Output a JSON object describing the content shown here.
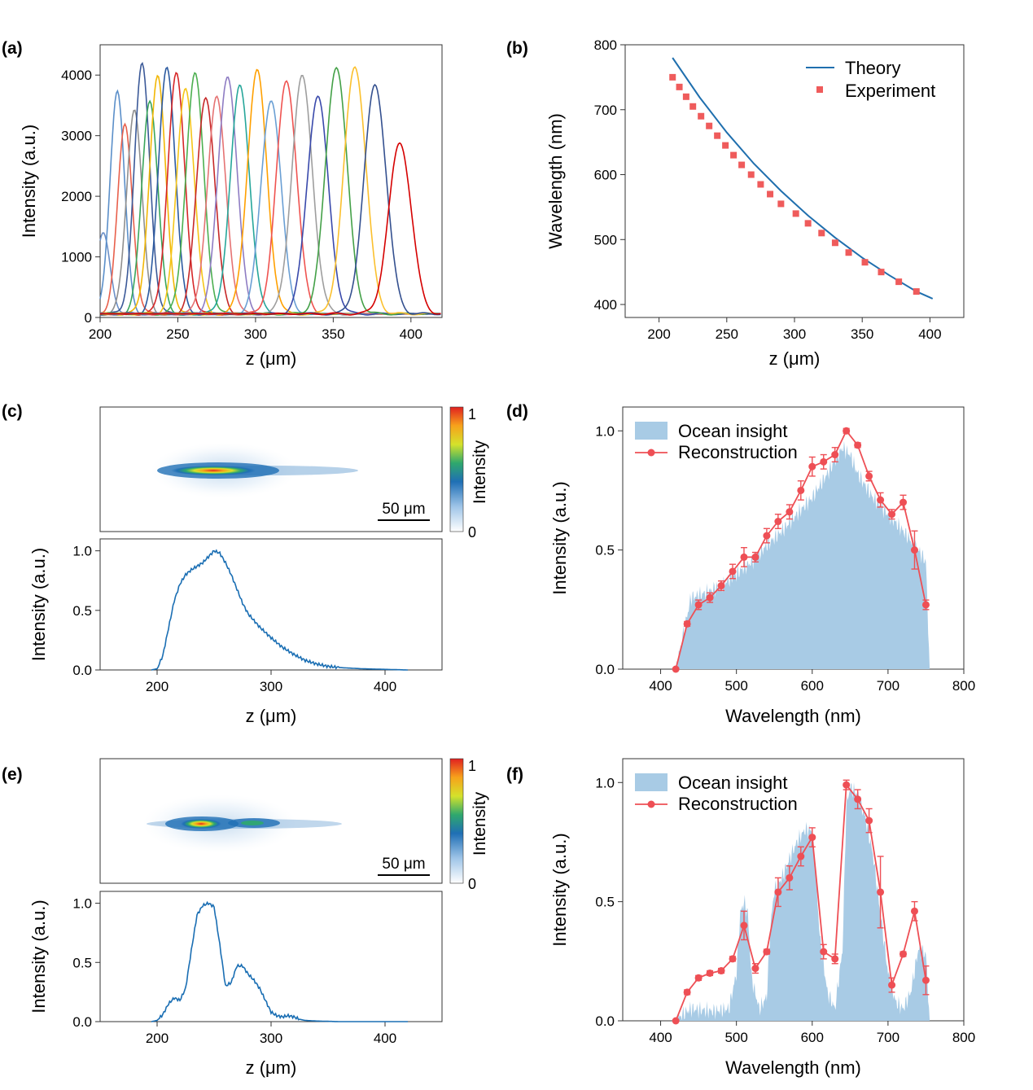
{
  "panels": {
    "a": {
      "label": "(a)"
    },
    "b": {
      "label": "(b)"
    },
    "c": {
      "label": "(c)"
    },
    "d": {
      "label": "(d)"
    },
    "e": {
      "label": "(e)"
    },
    "f": {
      "label": "(f)"
    }
  },
  "colorbar": {
    "label": "Intensity",
    "max": "1",
    "min": "0"
  },
  "scalebar": {
    "text": "50 μm"
  },
  "colors": {
    "theory": "#1f6fae",
    "experiment": "#ef5b5b",
    "ocean": "#a8cbe5",
    "reconstruction": "#ee4f55",
    "profile": "#1a6eb3"
  },
  "chart_data": [
    {
      "id": "a",
      "type": "line",
      "xlabel": "z (μm)",
      "ylabel": "Intensity (a.u.)",
      "xlim": [
        200,
        420
      ],
      "ylim": [
        0,
        4500
      ],
      "xticks": [
        200,
        250,
        300,
        350,
        400
      ],
      "yticks": [
        0,
        1000,
        2000,
        3000,
        4000
      ],
      "series": [
        {
          "peak_z": 202,
          "peak": 1300,
          "color": "#6b8fc7"
        },
        {
          "peak_z": 211,
          "peak": 3700,
          "color": "#5b8fc9"
        },
        {
          "peak_z": 216,
          "peak": 3100,
          "color": "#e8604c"
        },
        {
          "peak_z": 222,
          "peak": 3400,
          "color": "#8f8f8f"
        },
        {
          "peak_z": 227,
          "peak": 4100,
          "color": "#3b5998"
        },
        {
          "peak_z": 232,
          "peak": 3550,
          "color": "#3aa65c"
        },
        {
          "peak_z": 237,
          "peak": 3900,
          "color": "#f2b705"
        },
        {
          "peak_z": 243,
          "peak": 4100,
          "color": "#2c5aa0"
        },
        {
          "peak_z": 249,
          "peak": 3950,
          "color": "#d62728"
        },
        {
          "peak_z": 255,
          "peak": 3750,
          "color": "#f5c518"
        },
        {
          "peak_z": 261,
          "peak": 3950,
          "color": "#4caf50"
        },
        {
          "peak_z": 268,
          "peak": 3600,
          "color": "#c62828"
        },
        {
          "peak_z": 275,
          "peak": 3550,
          "color": "#e57373"
        },
        {
          "peak_z": 282,
          "peak": 3950,
          "color": "#8e7cc3"
        },
        {
          "peak_z": 290,
          "peak": 3750,
          "color": "#26a69a"
        },
        {
          "peak_z": 301,
          "peak": 4000,
          "color": "#ffa000"
        },
        {
          "peak_z": 310,
          "peak": 3550,
          "color": "#6a9fd4"
        },
        {
          "peak_z": 320,
          "peak": 3850,
          "color": "#ef5350"
        },
        {
          "peak_z": 330,
          "peak": 3900,
          "color": "#9e9e9e"
        },
        {
          "peak_z": 340,
          "peak": 3600,
          "color": "#3949ab"
        },
        {
          "peak_z": 352,
          "peak": 4100,
          "color": "#43a047"
        },
        {
          "peak_z": 364,
          "peak": 4100,
          "color": "#fbc02d"
        },
        {
          "peak_z": 377,
          "peak": 3780,
          "color": "#34508f"
        },
        {
          "peak_z": 393,
          "peak": 2830,
          "color": "#d50000"
        }
      ]
    },
    {
      "id": "b",
      "type": "scatter",
      "xlabel": "z (μm)",
      "ylabel": "Wavelength (nm)",
      "xlim": [
        175,
        425
      ],
      "ylim": [
        380,
        800
      ],
      "xticks": [
        200,
        250,
        300,
        350,
        400
      ],
      "yticks": [
        400,
        500,
        600,
        700,
        800
      ],
      "legend_position": "top-right",
      "series": [
        {
          "name": "Theory",
          "kind": "line",
          "x": [
            210,
            230,
            250,
            270,
            290,
            310,
            330,
            350,
            370,
            390,
            402
          ],
          "y": [
            780,
            719,
            665,
            617,
            575,
            537,
            503,
            472,
            445,
            420,
            409
          ]
        },
        {
          "name": "Experiment",
          "kind": "marker",
          "x": [
            210,
            215,
            220,
            225,
            231,
            237,
            243,
            249,
            255,
            261,
            268,
            275,
            282,
            290,
            301,
            310,
            320,
            330,
            340,
            352,
            364,
            377,
            390
          ],
          "y": [
            750,
            735,
            720,
            705,
            690,
            675,
            660,
            645,
            630,
            615,
            600,
            585,
            570,
            555,
            540,
            525,
            510,
            495,
            480,
            465,
            450,
            435,
            420
          ]
        }
      ]
    },
    {
      "id": "c",
      "type": "line",
      "xlabel": "z (μm)",
      "ylabel": "Intensity (a.u.)",
      "xlim": [
        150,
        450
      ],
      "ylim": [
        0,
        1.1
      ],
      "xticks": [
        200,
        300,
        400
      ],
      "yticks": [
        "0.0",
        "0.5",
        "1.0"
      ],
      "x": [
        195,
        200,
        205,
        210,
        215,
        220,
        225,
        230,
        235,
        240,
        245,
        250,
        255,
        260,
        265,
        270,
        275,
        280,
        290,
        300,
        310,
        320,
        330,
        340,
        350,
        360,
        380,
        400,
        420
      ],
      "y": [
        0,
        0.01,
        0.12,
        0.35,
        0.58,
        0.72,
        0.8,
        0.84,
        0.87,
        0.9,
        0.95,
        1.0,
        0.98,
        0.9,
        0.8,
        0.68,
        0.56,
        0.47,
        0.36,
        0.27,
        0.19,
        0.13,
        0.08,
        0.05,
        0.03,
        0.02,
        0.01,
        0.005,
        0
      ]
    },
    {
      "id": "d",
      "type": "area",
      "xlabel": "Wavelength (nm)",
      "ylabel": "Intensity (a.u.)",
      "xlim": [
        350,
        800
      ],
      "ylim": [
        0,
        1.1
      ],
      "xticks": [
        400,
        500,
        600,
        700,
        800
      ],
      "yticks": [
        "0.0",
        "0.5",
        "1.0"
      ],
      "legend_position": "top-left",
      "series": [
        {
          "name": "Ocean insight",
          "kind": "area",
          "x": [
            350,
            420,
            430,
            440,
            460,
            480,
            500,
            520,
            540,
            560,
            580,
            600,
            620,
            640,
            650,
            660,
            680,
            700,
            720,
            740,
            750,
            755,
            800
          ],
          "y": [
            0,
            0,
            0.15,
            0.3,
            0.32,
            0.35,
            0.4,
            0.45,
            0.52,
            0.58,
            0.65,
            0.72,
            0.82,
            0.93,
            0.9,
            0.82,
            0.72,
            0.65,
            0.58,
            0.5,
            0.45,
            0,
            0
          ]
        },
        {
          "name": "Reconstruction",
          "kind": "line-marker",
          "x": [
            420,
            435,
            450,
            465,
            480,
            495,
            510,
            525,
            540,
            555,
            570,
            585,
            600,
            615,
            630,
            645,
            660,
            675,
            690,
            705,
            720,
            735,
            750
          ],
          "y": [
            0.0,
            0.19,
            0.27,
            0.3,
            0.35,
            0.41,
            0.47,
            0.47,
            0.56,
            0.62,
            0.66,
            0.75,
            0.85,
            0.87,
            0.9,
            1.0,
            0.94,
            0.81,
            0.71,
            0.65,
            0.7,
            0.5,
            0.27
          ],
          "err": [
            0,
            0.01,
            0.02,
            0.02,
            0.02,
            0.03,
            0.04,
            0.02,
            0.03,
            0.03,
            0.03,
            0.04,
            0.04,
            0.03,
            0.03,
            0.01,
            0.01,
            0.02,
            0.03,
            0.02,
            0.03,
            0.08,
            0.02
          ]
        }
      ]
    },
    {
      "id": "e",
      "type": "line",
      "xlabel": "z (μm)",
      "ylabel": "Intensity (a.u.)",
      "xlim": [
        150,
        450
      ],
      "ylim": [
        0,
        1.1
      ],
      "xticks": [
        200,
        300,
        400
      ],
      "yticks": [
        "0.0",
        "0.5",
        "1.0"
      ],
      "x": [
        195,
        200,
        205,
        210,
        215,
        220,
        225,
        230,
        235,
        240,
        245,
        250,
        255,
        260,
        265,
        270,
        275,
        280,
        285,
        290,
        295,
        300,
        305,
        310,
        315,
        320,
        325,
        330,
        340,
        360,
        380,
        400,
        420
      ],
      "y": [
        0,
        0.01,
        0.06,
        0.15,
        0.2,
        0.18,
        0.28,
        0.6,
        0.9,
        0.98,
        1.0,
        0.97,
        0.65,
        0.3,
        0.33,
        0.47,
        0.47,
        0.4,
        0.35,
        0.28,
        0.18,
        0.08,
        0.05,
        0.04,
        0.05,
        0.04,
        0.02,
        0.01,
        0.005,
        0,
        0,
        0,
        0
      ]
    },
    {
      "id": "f",
      "type": "area",
      "xlabel": "Wavelength (nm)",
      "ylabel": "Intensity (a.u.)",
      "xlim": [
        350,
        800
      ],
      "ylim": [
        0,
        1.1
      ],
      "xticks": [
        400,
        500,
        600,
        700,
        800
      ],
      "yticks": [
        "0.0",
        "0.5",
        "1.0"
      ],
      "legend_position": "top-left",
      "series": [
        {
          "name": "Ocean insight",
          "kind": "area",
          "x": [
            350,
            420,
            430,
            440,
            470,
            490,
            500,
            505,
            510,
            515,
            520,
            530,
            540,
            545,
            550,
            560,
            570,
            580,
            590,
            600,
            605,
            610,
            620,
            630,
            640,
            645,
            650,
            660,
            670,
            680,
            690,
            700,
            710,
            720,
            730,
            740,
            750,
            755,
            800
          ],
          "y": [
            0,
            0,
            0.03,
            0.05,
            0.04,
            0.05,
            0.2,
            0.45,
            0.5,
            0.45,
            0.18,
            0.05,
            0.1,
            0.4,
            0.55,
            0.6,
            0.68,
            0.75,
            0.8,
            0.8,
            0.6,
            0.35,
            0.12,
            0.05,
            0.3,
            0.9,
            0.98,
            0.95,
            0.85,
            0.7,
            0.45,
            0.2,
            0.08,
            0.05,
            0.12,
            0.3,
            0.28,
            0,
            0
          ]
        },
        {
          "name": "Reconstruction",
          "kind": "line-marker",
          "x": [
            420,
            435,
            450,
            465,
            480,
            495,
            510,
            525,
            540,
            555,
            570,
            585,
            600,
            615,
            630,
            645,
            660,
            675,
            690,
            705,
            720,
            735,
            750
          ],
          "y": [
            0.0,
            0.12,
            0.18,
            0.2,
            0.21,
            0.26,
            0.4,
            0.22,
            0.29,
            0.54,
            0.6,
            0.69,
            0.77,
            0.29,
            0.26,
            0.99,
            0.93,
            0.84,
            0.54,
            0.15,
            0.28,
            0.46,
            0.17
          ],
          "err": [
            0,
            0.01,
            0.01,
            0.01,
            0.01,
            0.01,
            0.06,
            0.02,
            0.01,
            0.06,
            0.05,
            0.04,
            0.04,
            0.03,
            0.02,
            0.02,
            0.04,
            0.05,
            0.15,
            0.03,
            0.01,
            0.04,
            0.06
          ]
        }
      ]
    }
  ]
}
